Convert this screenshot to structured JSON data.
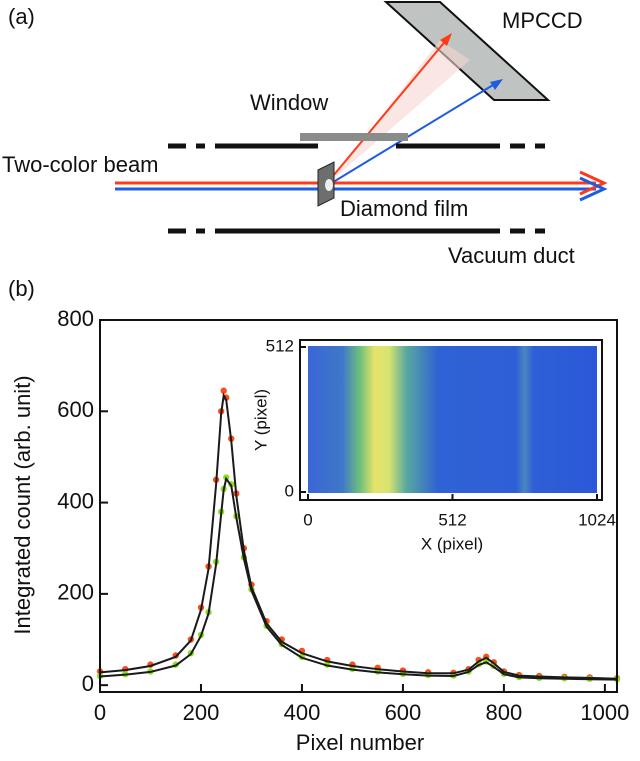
{
  "diagram": {
    "panel_label": "(a)",
    "detector": "MPCCD",
    "window": "Window",
    "beam": "Two-color beam",
    "film": "Diamond film",
    "duct": "Vacuum duct"
  },
  "chart_data": {
    "type": "line",
    "panel_label": "(b)",
    "xlabel": "Pixel number",
    "ylabel": "Integrated count (arb. unit)",
    "x": [
      0,
      50,
      100,
      150,
      180,
      200,
      215,
      230,
      240,
      245,
      250,
      260,
      270,
      285,
      300,
      330,
      360,
      400,
      450,
      500,
      550,
      600,
      650,
      700,
      730,
      750,
      765,
      780,
      800,
      830,
      870,
      920,
      970,
      1024
    ],
    "series": [
      {
        "color": "#ff4a1c",
        "marker": "dot",
        "values": [
          30,
          35,
          45,
          65,
          100,
          170,
          260,
          450,
          600,
          645,
          630,
          540,
          420,
          300,
          220,
          140,
          100,
          75,
          55,
          45,
          38,
          32,
          28,
          27,
          35,
          55,
          62,
          50,
          30,
          22,
          20,
          18,
          17,
          15
        ]
      },
      {
        "color": "#8fe01c",
        "marker": "dot",
        "values": [
          20,
          24,
          30,
          45,
          70,
          110,
          160,
          270,
          380,
          430,
          455,
          440,
          370,
          280,
          210,
          130,
          90,
          62,
          45,
          36,
          30,
          25,
          22,
          21,
          30,
          46,
          52,
          42,
          25,
          18,
          16,
          15,
          14,
          13
        ]
      },
      {
        "color": "#1a1a1a",
        "marker": "line",
        "values": [
          28,
          33,
          42,
          62,
          98,
          165,
          255,
          440,
          595,
          635,
          625,
          535,
          415,
          295,
          215,
          135,
          95,
          70,
          52,
          42,
          35,
          30,
          26,
          26,
          34,
          52,
          60,
          48,
          29,
          21,
          19,
          17,
          16,
          14
        ]
      },
      {
        "color": "#1a1a1a",
        "marker": "line",
        "values": [
          19,
          23,
          29,
          43,
          68,
          108,
          157,
          265,
          375,
          428,
          452,
          437,
          367,
          277,
          207,
          128,
          88,
          60,
          43,
          34,
          28,
          24,
          21,
          20,
          29,
          44,
          50,
          40,
          24,
          17,
          15,
          14,
          13,
          12
        ]
      }
    ],
    "xlim": [
      0,
      1024
    ],
    "ylim": [
      -15,
      800
    ],
    "xticks": [
      0,
      200,
      400,
      600,
      800,
      1000
    ],
    "yticks": [
      0,
      200,
      400,
      600,
      800
    ],
    "inset": {
      "xlabel": "X (pixel)",
      "ylabel": "Y (pixel)",
      "xlim": [
        0,
        1024
      ],
      "ylim": [
        0,
        512
      ],
      "xticks": [
        0,
        512,
        1024
      ],
      "yticks": [
        0,
        512
      ]
    }
  }
}
